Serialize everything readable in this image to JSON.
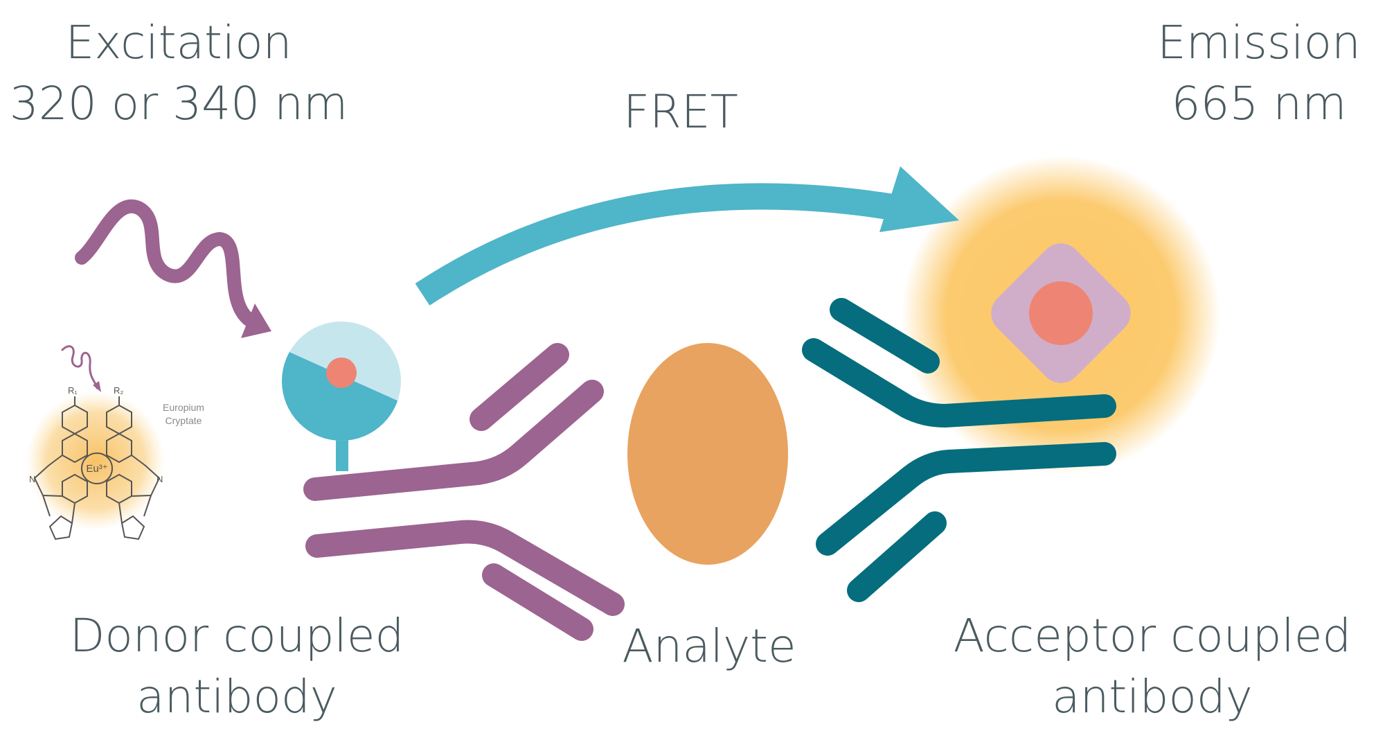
{
  "labels": {
    "excitation_line1": "Excitation",
    "excitation_line2": "320 or 340 nm",
    "fret": "FRET",
    "emission_line1": "Emission",
    "emission_line2": "665 nm",
    "donor_line1": "Donor coupled",
    "donor_line2": "antibody",
    "analyte": "Analyte",
    "acceptor_line1": "Acceptor coupled",
    "acceptor_line2": "antibody"
  },
  "inset": {
    "caption_line1": "Europium",
    "caption_line2": "Cryptate",
    "center_ion": "Eu³⁺",
    "r1": "R₁",
    "r2": "R₂",
    "n": "N"
  },
  "colors": {
    "donor_antibody": "#9c6490",
    "acceptor_antibody": "#056d7d",
    "analyte": "#e8a360",
    "fret_arrow": "#4fb5c8",
    "glow": "#fcc868",
    "acceptor_shape": "#d0aec9",
    "fluorophore_core": "#ee8574",
    "donor_disc_light": "#c6e6ee",
    "text": "#4a5a60"
  },
  "icons": {
    "excitation": "wavy-arrow-icon",
    "fret": "curved-arrow-icon"
  }
}
